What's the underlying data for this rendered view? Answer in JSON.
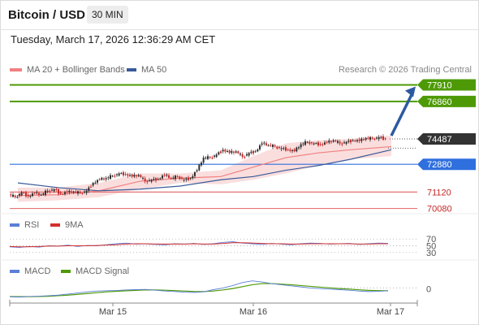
{
  "header": {
    "title": "Bitcoin / USD",
    "timeframe": "30 MIN",
    "timestamp": "Tuesday, March 17, 2026 12:36:29 AM CET"
  },
  "legend": {
    "ma20_label": "MA 20 + Bollinger Bands",
    "ma50_label": "MA 50",
    "credit": "Research © 2026 Trading Central",
    "rsi_label": "RSI",
    "rsi_ma_label": "9MA",
    "macd_label": "MACD",
    "macd_signal_label": "MACD Signal"
  },
  "colors": {
    "up_candle": "#2f2f2f",
    "down_candle": "#c62828",
    "resistance": "#4e9a06",
    "pivot": "#2f6fde",
    "support": "#e57373",
    "bollinger_fill": "#f8d3d3",
    "ma20": "#f08080",
    "ma50": "#3a5a98",
    "rsi": "#5b7fd8",
    "rsi_ma": "#d32f2f",
    "arrow": "#2c5aa0"
  },
  "chart_data": {
    "type": "candlestick",
    "instrument": "Bitcoin / USD",
    "timeframe": "30 MIN",
    "ylim": [
      69800,
      78400
    ],
    "x_ticks": [
      "Mar 15",
      "Mar 16",
      "Mar 17"
    ],
    "levels": [
      {
        "value": 77910,
        "label": "77910",
        "kind": "resistance"
      },
      {
        "value": 76860,
        "label": "76860",
        "kind": "resistance"
      },
      {
        "value": 74487,
        "label": "74487",
        "kind": "last"
      },
      {
        "value": 72880,
        "label": "72880",
        "kind": "pivot"
      },
      {
        "value": 71120,
        "label": "71120",
        "kind": "support"
      },
      {
        "value": 70080,
        "label": "70080",
        "kind": "support"
      }
    ],
    "price_path": [
      [
        0,
        70970
      ],
      [
        8,
        70800
      ],
      [
        16,
        71100
      ],
      [
        24,
        70850
      ],
      [
        32,
        71050
      ],
      [
        40,
        70950
      ],
      [
        48,
        71200
      ],
      [
        56,
        71300
      ],
      [
        64,
        71000
      ],
      [
        72,
        71100
      ],
      [
        80,
        71150
      ],
      [
        88,
        71050
      ],
      [
        96,
        71200
      ],
      [
        104,
        71700
      ],
      [
        112,
        71900
      ],
      [
        120,
        72000
      ],
      [
        128,
        72150
      ],
      [
        136,
        72300
      ],
      [
        144,
        72250
      ],
      [
        152,
        72100
      ],
      [
        160,
        72200
      ],
      [
        168,
        71800
      ],
      [
        176,
        71900
      ],
      [
        184,
        71950
      ],
      [
        192,
        72200
      ],
      [
        200,
        72000
      ],
      [
        208,
        72100
      ],
      [
        216,
        71900
      ],
      [
        224,
        72000
      ],
      [
        232,
        72500
      ],
      [
        240,
        73300
      ],
      [
        248,
        73300
      ],
      [
        256,
        73500
      ],
      [
        264,
        73800
      ],
      [
        272,
        73600
      ],
      [
        280,
        73700
      ],
      [
        288,
        73350
      ],
      [
        296,
        73600
      ],
      [
        304,
        73700
      ],
      [
        312,
        74200
      ],
      [
        320,
        74100
      ],
      [
        328,
        74000
      ],
      [
        336,
        73900
      ],
      [
        344,
        73800
      ],
      [
        352,
        73700
      ],
      [
        360,
        74150
      ],
      [
        368,
        74300
      ],
      [
        376,
        74200
      ],
      [
        384,
        74150
      ],
      [
        392,
        74250
      ],
      [
        400,
        74400
      ],
      [
        408,
        74200
      ],
      [
        416,
        74300
      ],
      [
        424,
        74400
      ],
      [
        432,
        74350
      ],
      [
        440,
        74550
      ],
      [
        448,
        74500
      ],
      [
        456,
        74600
      ],
      [
        464,
        74487
      ]
    ],
    "ma20": [
      [
        10,
        70900
      ],
      [
        60,
        70950
      ],
      [
        110,
        71200
      ],
      [
        160,
        71800
      ],
      [
        210,
        72000
      ],
      [
        260,
        72100
      ],
      [
        300,
        72700
      ],
      [
        340,
        73300
      ],
      [
        380,
        73600
      ],
      [
        420,
        73800
      ],
      [
        470,
        74000
      ]
    ],
    "ma50": [
      [
        10,
        71700
      ],
      [
        60,
        71400
      ],
      [
        110,
        71200
      ],
      [
        160,
        71300
      ],
      [
        210,
        71500
      ],
      [
        260,
        71900
      ],
      [
        300,
        72100
      ],
      [
        340,
        72500
      ],
      [
        380,
        72800
      ],
      [
        420,
        73200
      ],
      [
        470,
        73800
      ]
    ],
    "bollinger_upper": [
      [
        10,
        71400
      ],
      [
        60,
        71400
      ],
      [
        110,
        71700
      ],
      [
        160,
        72300
      ],
      [
        210,
        72300
      ],
      [
        260,
        72500
      ],
      [
        300,
        73400
      ],
      [
        340,
        74200
      ],
      [
        380,
        74400
      ],
      [
        420,
        74500
      ],
      [
        470,
        74700
      ]
    ],
    "bollinger_lower": [
      [
        10,
        70500
      ],
      [
        60,
        70600
      ],
      [
        110,
        70800
      ],
      [
        160,
        71300
      ],
      [
        210,
        71700
      ],
      [
        260,
        71600
      ],
      [
        300,
        71900
      ],
      [
        340,
        72300
      ],
      [
        380,
        72800
      ],
      [
        420,
        73200
      ],
      [
        470,
        73400
      ]
    ],
    "forecast_arrow": {
      "from": 74487,
      "to": 77910
    },
    "rsi": {
      "levels": [
        70,
        50,
        30
      ],
      "tick_labels": [
        "70",
        "50",
        "30"
      ],
      "ylim": [
        20,
        80
      ],
      "rsi_values": [
        47,
        45,
        48,
        46,
        50,
        49,
        52,
        48,
        51,
        50,
        53,
        56,
        58,
        55,
        56,
        54,
        53,
        56,
        55,
        57,
        54,
        56,
        60,
        62,
        58,
        56,
        54,
        57,
        55,
        53,
        56,
        58,
        57,
        55,
        56,
        57,
        54,
        56,
        58,
        57
      ],
      "ma_values": [
        48,
        47,
        47,
        48,
        49,
        49,
        50,
        50,
        50,
        51,
        52,
        53,
        55,
        56,
        56,
        55,
        55,
        55,
        55,
        56,
        55,
        55,
        57,
        59,
        59,
        58,
        57,
        56,
        56,
        55,
        55,
        56,
        56,
        56,
        56,
        56,
        55,
        55,
        56,
        56
      ]
    },
    "macd": {
      "zero_label": "0",
      "macd_values": [
        -60,
        -70,
        -50,
        -40,
        -20,
        0,
        40,
        80,
        120,
        150,
        160,
        170,
        190,
        200,
        210,
        180,
        150,
        130,
        110,
        100,
        120,
        200,
        260,
        350,
        460,
        520,
        480,
        420,
        380,
        340,
        300,
        260,
        240,
        220,
        200,
        180,
        150,
        130,
        140,
        160
      ],
      "signal_values": [
        -50,
        -55,
        -55,
        -50,
        -40,
        -20,
        0,
        30,
        60,
        90,
        120,
        140,
        160,
        175,
        190,
        190,
        180,
        165,
        150,
        135,
        130,
        150,
        190,
        240,
        310,
        380,
        420,
        420,
        400,
        380,
        350,
        320,
        290,
        265,
        240,
        220,
        195,
        175,
        165,
        160
      ]
    }
  }
}
